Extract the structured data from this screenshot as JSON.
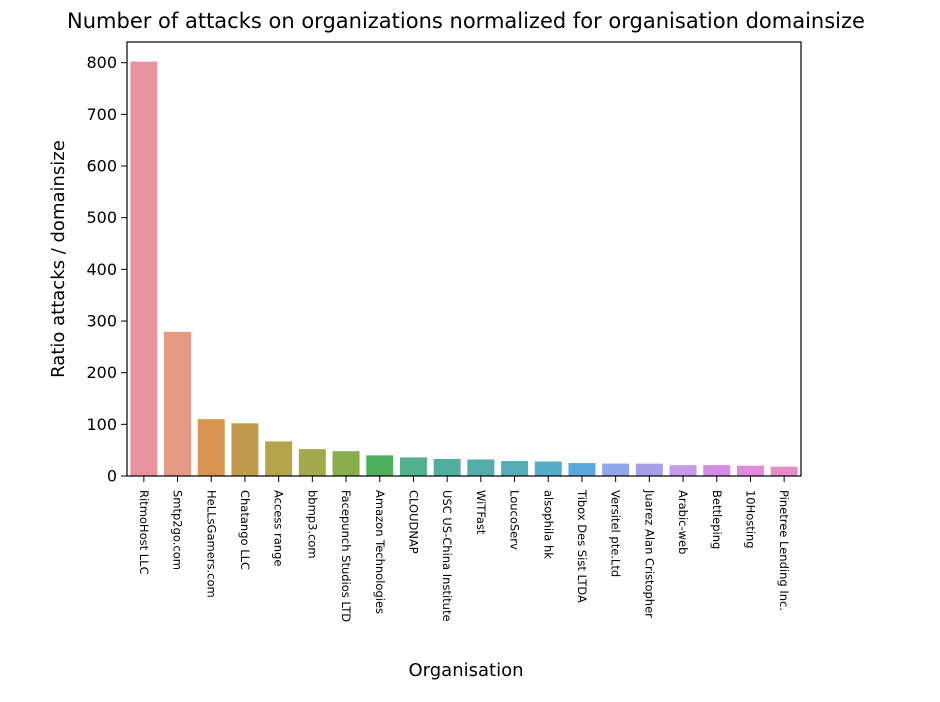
{
  "chart_data": {
    "type": "bar",
    "title": "Number of attacks on organizations normalized for organisation domainsize",
    "xlabel": "Organisation",
    "ylabel": "Ratio attacks / domainsize",
    "ylim": [
      0,
      840
    ],
    "yticks": [
      0,
      100,
      200,
      300,
      400,
      500,
      600,
      700,
      800
    ],
    "grid": false,
    "categories": [
      "RitmoHost LLC",
      "Smtp2go.com",
      "HeLLsGamers.com",
      "Chatango LLC",
      "Access range",
      "bbmp3.com",
      "Facepunch Studios LTD",
      "Amazon Technologies",
      "CLOUDNAP",
      "USC US-China Institute",
      "WiTFast",
      "LoucoServ",
      "alsophila hk",
      "Tibox Des Sist LTDA",
      "Versitel pte.Ltd",
      "Juarez Alan Cristopher",
      "Arabic-web",
      "Bettleping",
      "10Hosting",
      "Pinetree Lending Inc."
    ],
    "values": [
      802,
      279,
      110,
      102,
      67,
      52,
      48,
      40,
      36,
      33,
      32,
      29,
      28,
      25,
      24,
      24,
      21,
      21,
      20,
      18
    ],
    "colors": [
      "#e8919f",
      "#e79a81",
      "#d8944f",
      "#c29c4e",
      "#b4a44c",
      "#a2a94e",
      "#8aad4d",
      "#4eb05a",
      "#52b08c",
      "#52ae9f",
      "#53aeab",
      "#55adb8",
      "#55acc6",
      "#5aa8e0",
      "#8ea6ea",
      "#a9a0ea",
      "#c79aea",
      "#d78ae8",
      "#e38adf",
      "#e88cc8"
    ]
  }
}
